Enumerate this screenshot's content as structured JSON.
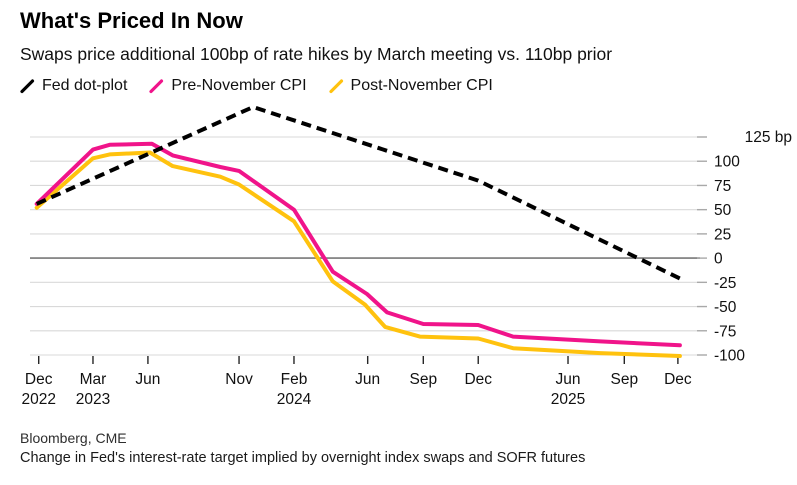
{
  "header": {
    "title": "What's Priced In Now",
    "subtitle": "Swaps price additional 100bp of rate hikes by March meeting vs. 110bp prior"
  },
  "legend": {
    "items": [
      {
        "label": "Fed dot-plot",
        "color": "#000000",
        "icon": "line-swatch-icon"
      },
      {
        "label": "Pre-November CPI",
        "color": "#f0148a",
        "icon": "line-swatch-icon"
      },
      {
        "label": "Post-November CPI",
        "color": "#ffc20e",
        "icon": "line-swatch-icon"
      }
    ]
  },
  "footer": {
    "source": "Bloomberg, CME",
    "note": "Change in Fed's interest-rate target implied by overnight index swaps and SOFR futures"
  },
  "chart_data": {
    "type": "line",
    "title": "What's Priced In Now",
    "subtitle": "Swaps price additional 100bp of rate hikes by March meeting vs. 110bp prior",
    "unit": "bp",
    "ylim": [
      -100,
      125
    ],
    "grid": true,
    "legend_position": "top",
    "y_axis": {
      "side": "right",
      "top_label": "125 bp",
      "ticks": [
        125,
        100,
        75,
        50,
        25,
        0,
        -25,
        -50,
        -75,
        -100
      ],
      "zero_line_value": 0
    },
    "x_axis": {
      "ticks": [
        {
          "pos": 0.013,
          "label": "Dec",
          "year": "2022"
        },
        {
          "pos": 0.094,
          "label": "Mar",
          "year": "2023"
        },
        {
          "pos": 0.176,
          "label": "Jun",
          "year": ""
        },
        {
          "pos": 0.312,
          "label": "Nov",
          "year": ""
        },
        {
          "pos": 0.394,
          "label": "Feb",
          "year": "2024"
        },
        {
          "pos": 0.504,
          "label": "Jun",
          "year": ""
        },
        {
          "pos": 0.587,
          "label": "Sep",
          "year": ""
        },
        {
          "pos": 0.669,
          "label": "Dec",
          "year": ""
        },
        {
          "pos": 0.803,
          "label": "Jun",
          "year": "2025"
        },
        {
          "pos": 0.887,
          "label": "Sep",
          "year": ""
        },
        {
          "pos": 0.967,
          "label": "Dec",
          "year": ""
        }
      ]
    },
    "series": [
      {
        "name": "Post-November CPI",
        "color": "#ffc20e",
        "dashed": false,
        "points": [
          [
            0.01,
            52
          ],
          [
            0.094,
            103
          ],
          [
            0.119,
            107
          ],
          [
            0.179,
            109
          ],
          [
            0.213,
            95
          ],
          [
            0.284,
            84
          ],
          [
            0.312,
            76
          ],
          [
            0.394,
            38
          ],
          [
            0.452,
            -24
          ],
          [
            0.5,
            -48
          ],
          [
            0.53,
            -71
          ],
          [
            0.582,
            -81
          ],
          [
            0.669,
            -83
          ],
          [
            0.721,
            -93
          ],
          [
            0.851,
            -98
          ],
          [
            0.97,
            -101
          ]
        ]
      },
      {
        "name": "Pre-November CPI",
        "color": "#f0148a",
        "dashed": false,
        "points": [
          [
            0.01,
            56
          ],
          [
            0.094,
            112
          ],
          [
            0.119,
            117
          ],
          [
            0.182,
            118
          ],
          [
            0.213,
            106
          ],
          [
            0.284,
            94
          ],
          [
            0.312,
            90
          ],
          [
            0.394,
            50
          ],
          [
            0.452,
            -14
          ],
          [
            0.503,
            -37
          ],
          [
            0.533,
            -56
          ],
          [
            0.587,
            -68
          ],
          [
            0.669,
            -69
          ],
          [
            0.721,
            -81
          ],
          [
            0.851,
            -86
          ],
          [
            0.97,
            -90
          ]
        ]
      },
      {
        "name": "Fed dot-plot",
        "color": "#000000",
        "dashed": true,
        "points": [
          [
            0.01,
            56
          ],
          [
            0.333,
            156
          ],
          [
            0.669,
            80
          ],
          [
            0.97,
            -21
          ]
        ]
      }
    ]
  }
}
